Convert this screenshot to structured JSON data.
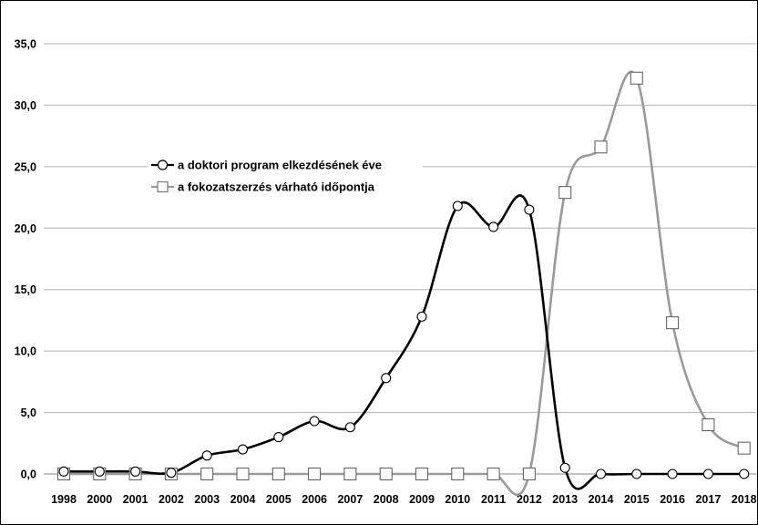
{
  "chart_data": {
    "type": "line",
    "categories": [
      "1998",
      "2000",
      "2001",
      "2002",
      "2003",
      "2004",
      "2005",
      "2006",
      "2007",
      "2008",
      "2009",
      "2010",
      "2011",
      "2012",
      "2013",
      "2014",
      "2015",
      "2016",
      "2017",
      "2018"
    ],
    "y_tick_labels": [
      "0,0",
      "5,0",
      "10,0",
      "15,0",
      "20,0",
      "25,0",
      "30,0",
      "35,0"
    ],
    "ylim": [
      0,
      35
    ],
    "grid": "horizontal",
    "legend_position": "upper-left-inside",
    "series": [
      {
        "name": "a doktori program elkezdésének éve",
        "marker": "circle",
        "color": "#000000",
        "values": [
          0.2,
          0.2,
          0.2,
          0.1,
          1.5,
          2.0,
          3.0,
          4.3,
          3.8,
          7.8,
          12.8,
          21.8,
          20.1,
          21.5,
          0.5,
          0.0,
          0.0,
          0.0,
          0.0,
          0.0
        ]
      },
      {
        "name": "a fokozatszerzés várható időpontja",
        "marker": "square",
        "color": "#9a9a9a",
        "values": [
          0.0,
          0.0,
          0.0,
          0.0,
          0.0,
          0.0,
          0.0,
          0.0,
          0.0,
          0.0,
          0.0,
          0.0,
          0.0,
          0.0,
          22.9,
          26.6,
          32.2,
          12.3,
          4.0,
          2.1
        ]
      }
    ]
  }
}
